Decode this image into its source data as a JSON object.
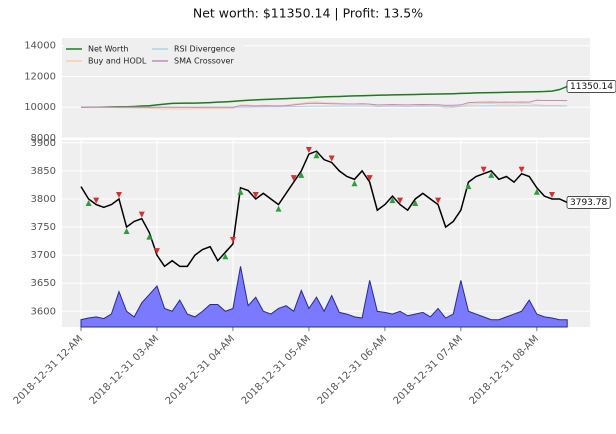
{
  "chart_data": [
    {
      "type": "line",
      "title": "Net worth: $11350.14 | Profit: 13.5%",
      "xlim": [
        -2.5,
        67
      ],
      "ylim": [
        8000,
        14500
      ],
      "yticks": [
        8000,
        10000,
        12000,
        14000
      ],
      "grid": true,
      "legend": "upper left",
      "series": [
        {
          "name": "Net Worth",
          "color": "#1e7a1e",
          "values": [
            10000,
            10000,
            10000,
            10010,
            10020,
            10030,
            10030,
            10050,
            10080,
            10100,
            10150,
            10200,
            10250,
            10260,
            10270,
            10270,
            10280,
            10300,
            10330,
            10350,
            10380,
            10420,
            10450,
            10480,
            10500,
            10520,
            10540,
            10560,
            10580,
            10600,
            10620,
            10650,
            10670,
            10690,
            10700,
            10720,
            10740,
            10750,
            10760,
            10780,
            10790,
            10800,
            10810,
            10820,
            10830,
            10840,
            10850,
            10860,
            10870,
            10880,
            10900,
            10910,
            10930,
            10940,
            10950,
            10960,
            10970,
            10980,
            10990,
            11000,
            11010,
            11020,
            11050,
            11150,
            11350.14
          ]
        },
        {
          "name": "Buy and HODL",
          "color": "#f5cfae",
          "values": [
            10000,
            9990,
            9980,
            9980,
            9990,
            9970,
            9960,
            9950,
            9940,
            9930,
            9900,
            9880,
            9890,
            9880,
            9880,
            9900,
            9910,
            9920,
            9900,
            9910,
            9920,
            10150,
            10140,
            10100,
            10130,
            10110,
            10100,
            10140,
            10200,
            10250,
            10330,
            10350,
            10300,
            10290,
            10250,
            10220,
            10210,
            10250,
            10200,
            10050,
            10080,
            10120,
            10080,
            10050,
            10100,
            10130,
            10100,
            10080,
            9960,
            9990,
            10050,
            10200,
            10230,
            10240,
            10250,
            10210,
            10220,
            10200,
            10240,
            10230,
            10170,
            10130,
            10120,
            10120,
            10100
          ]
        },
        {
          "name": "RSI Divergence",
          "color": "#aad4e6",
          "values": [
            10000,
            10000,
            10000,
            10000,
            10000,
            10000,
            10000,
            10000,
            10000,
            10000,
            10000,
            10000,
            10000,
            10000,
            10000,
            10000,
            10000,
            10000,
            10000,
            10000,
            10000,
            10010,
            10010,
            10020,
            10020,
            10030,
            10030,
            10040,
            10050,
            10050,
            10060,
            10060,
            10070,
            10070,
            10070,
            10080,
            10080,
            10080,
            10080,
            10050,
            10060,
            10070,
            10060,
            10050,
            10060,
            10070,
            10060,
            10060,
            10040,
            10050,
            10060,
            10080,
            10090,
            10090,
            10100,
            10090,
            10090,
            10090,
            10100,
            10100,
            10090,
            10080,
            10080,
            10080,
            10080
          ]
        },
        {
          "name": "SMA Crossover",
          "color": "#c48ab8",
          "values": [
            10000,
            10000,
            10000,
            10000,
            10000,
            10000,
            10000,
            10000,
            10000,
            10000,
            10000,
            10000,
            10000,
            9990,
            9990,
            9990,
            10000,
            10000,
            10000,
            10000,
            10000,
            10100,
            10100,
            10080,
            10100,
            10090,
            10080,
            10100,
            10150,
            10200,
            10250,
            10260,
            10240,
            10230,
            10220,
            10210,
            10210,
            10220,
            10200,
            10150,
            10160,
            10180,
            10160,
            10150,
            10170,
            10180,
            10170,
            10160,
            10120,
            10130,
            10150,
            10300,
            10320,
            10330,
            10340,
            10320,
            10330,
            10320,
            10340,
            10330,
            10450,
            10440,
            10440,
            10440,
            10430
          ]
        }
      ]
    },
    {
      "type": "line",
      "xlim": [
        -2.5,
        67
      ],
      "ylim": [
        3572,
        3905
      ],
      "yticks": [
        3600,
        3650,
        3700,
        3750,
        3800,
        3850,
        3900
      ],
      "grid": true,
      "xticks": [
        {
          "value": 0,
          "label": "2018-12-31 12-AM"
        },
        {
          "value": 10,
          "label": "2018-12-31 03-AM"
        },
        {
          "value": 20,
          "label": "2018-12-31 04-AM"
        },
        {
          "value": 30,
          "label": "2018-12-31 05-AM"
        },
        {
          "value": 40,
          "label": "2018-12-31 06-AM"
        },
        {
          "value": 50,
          "label": "2018-12-31 07-AM"
        },
        {
          "value": 60,
          "label": "2018-12-31 08-AM"
        }
      ],
      "series": [
        {
          "color": "#000000",
          "values": [
            3822,
            3800,
            3790,
            3785,
            3790,
            3800,
            3750,
            3760,
            3765,
            3740,
            3700,
            3680,
            3690,
            3680,
            3680,
            3700,
            3710,
            3715,
            3690,
            3705,
            3720,
            3820,
            3815,
            3800,
            3810,
            3800,
            3790,
            3810,
            3830,
            3850,
            3880,
            3885,
            3870,
            3865,
            3850,
            3840,
            3835,
            3850,
            3830,
            3780,
            3790,
            3805,
            3790,
            3780,
            3800,
            3810,
            3800,
            3790,
            3750,
            3760,
            3780,
            3830,
            3840,
            3845,
            3850,
            3835,
            3840,
            3830,
            3845,
            3840,
            3820,
            3805,
            3800,
            3800,
            3793.78
          ]
        }
      ],
      "volume": {
        "color": "#7a7aff",
        "values": [
          3585,
          3588,
          3590,
          3587,
          3595,
          3635,
          3600,
          3590,
          3615,
          3630,
          3645,
          3605,
          3600,
          3620,
          3595,
          3590,
          3600,
          3612,
          3612,
          3600,
          3605,
          3680,
          3610,
          3625,
          3600,
          3595,
          3605,
          3610,
          3600,
          3637,
          3605,
          3625,
          3600,
          3628,
          3598,
          3595,
          3590,
          3588,
          3655,
          3600,
          3598,
          3595,
          3600,
          3592,
          3595,
          3598,
          3590,
          3605,
          3588,
          3595,
          3655,
          3600,
          3595,
          3590,
          3585,
          3585,
          3590,
          3595,
          3600,
          3620,
          3595,
          3590,
          3588,
          3585,
          3585
        ]
      },
      "buys": [
        1,
        6,
        9,
        19,
        21,
        26,
        29,
        31,
        36,
        41,
        44,
        51,
        54,
        60
      ],
      "sells": [
        2,
        5,
        8,
        10,
        20,
        23,
        28,
        30,
        33,
        38,
        42,
        47,
        53,
        58,
        62
      ],
      "buy_color": "#2e9e3a",
      "sell_color": "#d62f2f"
    }
  ]
}
